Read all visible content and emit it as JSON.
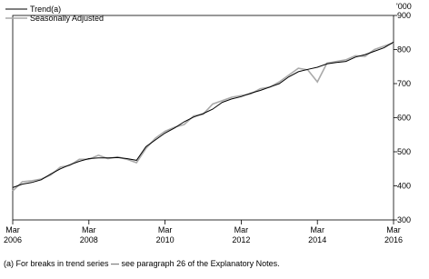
{
  "chart_data": {
    "type": "line",
    "y_unit": "'000",
    "footnote": "(a) For breaks in trend series — see paragraph 26 of the Explanatory Notes.",
    "x": [
      "2006-03",
      "2006-06",
      "2006-09",
      "2006-12",
      "2007-03",
      "2007-06",
      "2007-09",
      "2007-12",
      "2008-03",
      "2008-06",
      "2008-09",
      "2008-12",
      "2009-03",
      "2009-06",
      "2009-09",
      "2009-12",
      "2010-03",
      "2010-06",
      "2010-09",
      "2010-12",
      "2011-03",
      "2011-06",
      "2011-09",
      "2011-12",
      "2012-03",
      "2012-06",
      "2012-09",
      "2012-12",
      "2013-03",
      "2013-06",
      "2013-09",
      "2013-12",
      "2014-03",
      "2014-06",
      "2014-09",
      "2014-12",
      "2015-03",
      "2015-06",
      "2015-09",
      "2015-12",
      "2016-03"
    ],
    "series": [
      {
        "name": "Trend(a)",
        "color": "#000000",
        "values": [
          395,
          405,
          410,
          418,
          435,
          450,
          462,
          472,
          480,
          482,
          482,
          483,
          480,
          475,
          515,
          535,
          555,
          570,
          588,
          602,
          612,
          625,
          645,
          655,
          662,
          672,
          680,
          690,
          700,
          720,
          735,
          742,
          748,
          758,
          762,
          765,
          778,
          785,
          795,
          805,
          822
        ]
      },
      {
        "name": "Seasonally Adjusted",
        "color": "#aaaaaa",
        "values": [
          385,
          412,
          415,
          420,
          432,
          455,
          460,
          478,
          478,
          490,
          480,
          485,
          478,
          468,
          510,
          540,
          560,
          572,
          580,
          605,
          610,
          640,
          650,
          660,
          665,
          670,
          685,
          690,
          705,
          725,
          745,
          740,
          705,
          760,
          765,
          770,
          782,
          780,
          800,
          810,
          820
        ]
      }
    ],
    "xlim": [
      "2006-03",
      "2016-03"
    ],
    "xticks": [
      {
        "value": "2006-03",
        "label": "Mar 2006"
      },
      {
        "value": "2008-03",
        "label": "Mar 2008"
      },
      {
        "value": "2010-03",
        "label": "Mar 2010"
      },
      {
        "value": "2012-03",
        "label": "Mar 2012"
      },
      {
        "value": "2014-03",
        "label": "Mar 2014"
      },
      {
        "value": "2016-03",
        "label": "Mar 2016"
      }
    ],
    "ylim": [
      300,
      900
    ],
    "yticks": [
      300,
      400,
      500,
      600,
      700,
      800,
      900
    ],
    "legend": "top-left"
  }
}
